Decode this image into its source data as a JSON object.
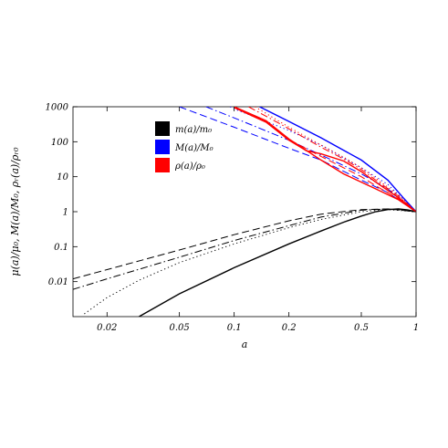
{
  "chart_data": {
    "type": "line",
    "xlabel": "a",
    "ylabel": "μ(a)/μ₀, M(a)/M₀, ρᵣ(a)/ρᵣ₀",
    "x_scale": "log",
    "y_scale": "log",
    "xlim": [
      0.013,
      1.0
    ],
    "ylim": [
      0.001,
      1000
    ],
    "x_ticks": [
      0.02,
      0.05,
      0.1,
      0.2,
      0.5,
      1
    ],
    "x_tick_labels": [
      "0.02",
      "0.05",
      "0.1",
      "0.2",
      "0.5",
      "1"
    ],
    "y_ticks": [
      0.01,
      0.1,
      1,
      10,
      100,
      1000
    ],
    "y_tick_labels": [
      "0.01",
      "0.1",
      "1",
      "10",
      "100",
      "1000"
    ],
    "grid": false,
    "legend_position": "top-left",
    "legend": [
      {
        "label": "m(a)/m₀",
        "color": "#000000"
      },
      {
        "label": "M(a)/M₀",
        "color": "#0000ff"
      },
      {
        "label": "ρ(a)/ρ₀",
        "color": "#ff0000"
      }
    ],
    "series": [
      {
        "group": "m",
        "color": "#000000",
        "dash": "solid",
        "points": [
          [
            0.03,
            0.001
          ],
          [
            0.05,
            0.0045
          ],
          [
            0.1,
            0.025
          ],
          [
            0.2,
            0.12
          ],
          [
            0.3,
            0.28
          ],
          [
            0.4,
            0.5
          ],
          [
            0.5,
            0.75
          ],
          [
            0.6,
            1.0
          ],
          [
            0.7,
            1.15
          ],
          [
            0.8,
            1.2
          ],
          [
            0.9,
            1.12
          ],
          [
            1.0,
            1.0
          ]
        ]
      },
      {
        "group": "m",
        "color": "#000000",
        "dash": "dotted",
        "points": [
          [
            0.015,
            0.0012
          ],
          [
            0.02,
            0.0035
          ],
          [
            0.03,
            0.011
          ],
          [
            0.05,
            0.035
          ],
          [
            0.1,
            0.12
          ],
          [
            0.2,
            0.35
          ],
          [
            0.3,
            0.6
          ],
          [
            0.5,
            1.0
          ],
          [
            0.7,
            1.15
          ],
          [
            1.0,
            1.0
          ]
        ]
      },
      {
        "group": "m",
        "color": "#000000",
        "dash": "dashdot",
        "points": [
          [
            0.013,
            0.006
          ],
          [
            0.02,
            0.012
          ],
          [
            0.05,
            0.05
          ],
          [
            0.1,
            0.15
          ],
          [
            0.2,
            0.4
          ],
          [
            0.3,
            0.7
          ],
          [
            0.5,
            1.1
          ],
          [
            0.7,
            1.2
          ],
          [
            1.0,
            1.0
          ]
        ]
      },
      {
        "group": "m",
        "color": "#000000",
        "dash": "dashed",
        "points": [
          [
            0.013,
            0.012
          ],
          [
            0.02,
            0.022
          ],
          [
            0.05,
            0.08
          ],
          [
            0.1,
            0.22
          ],
          [
            0.2,
            0.55
          ],
          [
            0.3,
            0.85
          ],
          [
            0.5,
            1.15
          ],
          [
            0.7,
            1.2
          ],
          [
            1.0,
            1.0
          ]
        ]
      },
      {
        "group": "M",
        "color": "#0000ff",
        "dash": "solid",
        "points": [
          [
            0.138,
            1000
          ],
          [
            0.2,
            380
          ],
          [
            0.3,
            130
          ],
          [
            0.5,
            30
          ],
          [
            0.7,
            8
          ],
          [
            0.85,
            2.5
          ],
          [
            1.0,
            1.0
          ]
        ]
      },
      {
        "group": "M",
        "color": "#0000ff",
        "dash": "dashed",
        "points": [
          [
            0.05,
            1000
          ],
          [
            0.1,
            260
          ],
          [
            0.2,
            65
          ],
          [
            0.3,
            30
          ],
          [
            0.5,
            8
          ],
          [
            0.7,
            3.5
          ],
          [
            1.0,
            1.0
          ]
        ]
      },
      {
        "group": "M",
        "color": "#0000ff",
        "dash": "dashdot",
        "points": [
          [
            0.07,
            1000
          ],
          [
            0.1,
            480
          ],
          [
            0.2,
            110
          ],
          [
            0.3,
            42
          ],
          [
            0.5,
            12
          ],
          [
            0.7,
            4.5
          ],
          [
            1.0,
            1.0
          ]
        ]
      },
      {
        "group": "M",
        "color": "#0000ff",
        "dash": "dotted",
        "points": [
          [
            0.095,
            1000
          ],
          [
            0.1,
            870
          ],
          [
            0.2,
            210
          ],
          [
            0.3,
            80
          ],
          [
            0.5,
            18
          ],
          [
            0.7,
            6
          ],
          [
            1.0,
            1.0
          ]
        ]
      },
      {
        "group": "rho",
        "color": "#ff0000",
        "dash": "solid",
        "points": [
          [
            0.1,
            1000
          ],
          [
            0.15,
            400
          ],
          [
            0.2,
            120
          ],
          [
            0.3,
            30
          ],
          [
            0.4,
            12
          ],
          [
            0.5,
            7
          ],
          [
            0.6,
            4.5
          ],
          [
            0.8,
            2.2
          ],
          [
            1.0,
            1.0
          ]
        ]
      },
      {
        "group": "rho",
        "color": "#ff0000",
        "dash": "solid",
        "points": [
          [
            0.1,
            950
          ],
          [
            0.15,
            360
          ],
          [
            0.2,
            110
          ],
          [
            0.25,
            55
          ],
          [
            0.3,
            45
          ],
          [
            0.4,
            28
          ],
          [
            0.5,
            14
          ],
          [
            0.6,
            7
          ],
          [
            0.8,
            2.5
          ],
          [
            1.0,
            1.0
          ]
        ]
      },
      {
        "group": "rho",
        "color": "#ff0000",
        "dash": "dashed",
        "points": [
          [
            0.1,
            1000
          ],
          [
            0.15,
            380
          ],
          [
            0.2,
            115
          ],
          [
            0.3,
            38
          ],
          [
            0.4,
            18
          ],
          [
            0.5,
            10
          ],
          [
            0.6,
            5.5
          ],
          [
            0.8,
            2.3
          ],
          [
            1.0,
            1.0
          ]
        ]
      },
      {
        "group": "rho",
        "color": "#ff0000",
        "dash": "dashdot",
        "points": [
          [
            0.12,
            1000
          ],
          [
            0.18,
            320
          ],
          [
            0.25,
            120
          ],
          [
            0.3,
            70
          ],
          [
            0.4,
            32
          ],
          [
            0.5,
            16
          ],
          [
            0.6,
            8
          ],
          [
            0.8,
            2.8
          ],
          [
            1.0,
            1.0
          ]
        ]
      },
      {
        "group": "rho",
        "color": "#ff0000",
        "dash": "dotted",
        "points": [
          [
            0.13,
            1000
          ],
          [
            0.2,
            260
          ],
          [
            0.3,
            80
          ],
          [
            0.4,
            36
          ],
          [
            0.5,
            18
          ],
          [
            0.6,
            9
          ],
          [
            0.8,
            3
          ],
          [
            1.0,
            1.0
          ]
        ]
      }
    ]
  }
}
